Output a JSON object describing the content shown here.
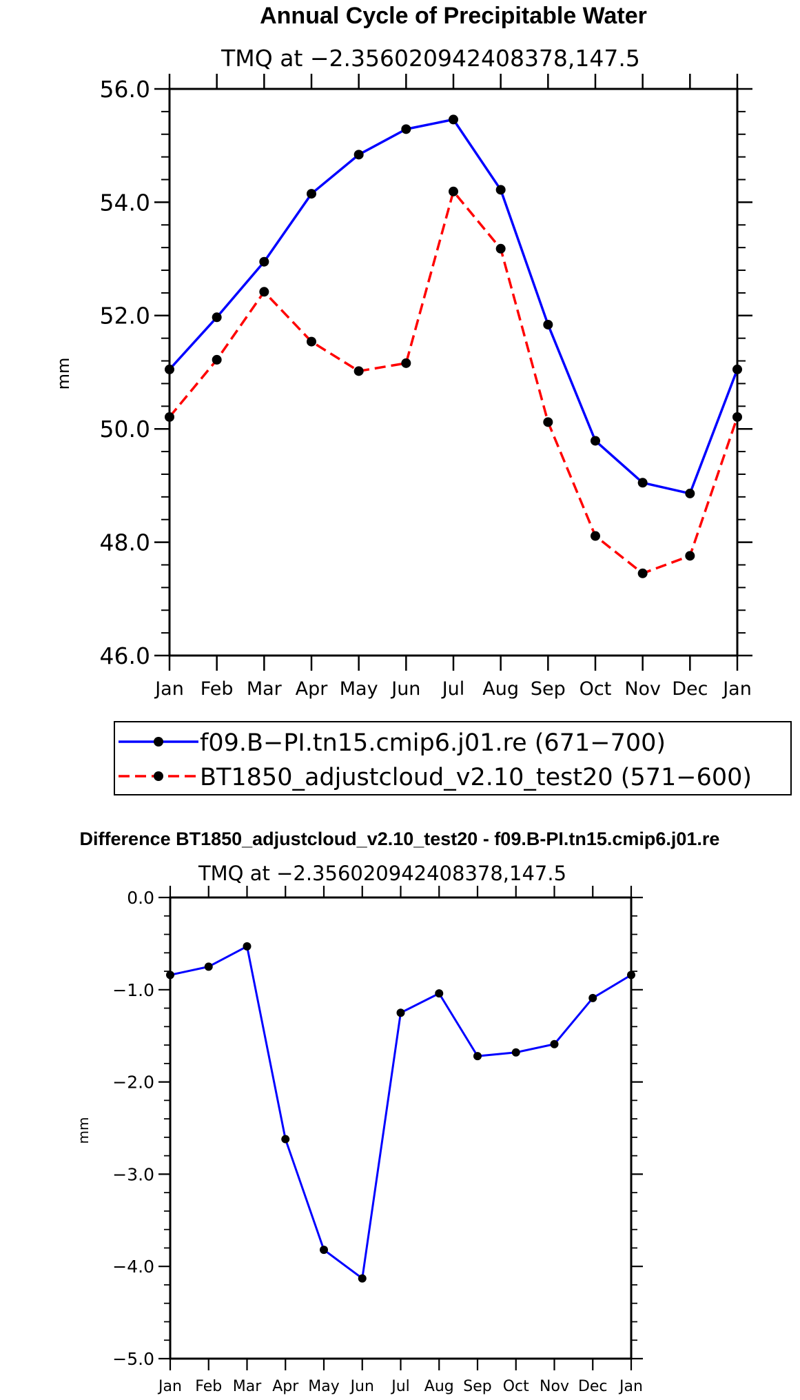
{
  "chart_data": [
    {
      "type": "line",
      "title": "Annual Cycle of Precipitable Water",
      "subtitle": "TMQ at −2.356020942408378,147.5",
      "xlabel": "",
      "ylabel": "mm",
      "categories": [
        "Jan",
        "Feb",
        "Mar",
        "Apr",
        "May",
        "Jun",
        "Jul",
        "Aug",
        "Sep",
        "Oct",
        "Nov",
        "Dec",
        "Jan"
      ],
      "ylim": [
        46.0,
        56.0
      ],
      "yticks": [
        46.0,
        48.0,
        50.0,
        52.0,
        54.0,
        56.0
      ],
      "ytick_labels": [
        "46.0",
        "48.0",
        "50.0",
        "52.0",
        "54.0",
        "56.0"
      ],
      "grid": false,
      "series": [
        {
          "name": "f09.B−PI.tn15.cmip6.j01.re (671−700)",
          "color": "#0000ff",
          "style": "solid",
          "values": [
            51.05,
            51.97,
            52.95,
            54.15,
            54.84,
            55.29,
            55.46,
            54.22,
            51.84,
            49.79,
            49.05,
            48.86,
            51.05
          ]
        },
        {
          "name": "BT1850_adjustcloud_v2.10_test20 (571−600)",
          "color": "#ff0000",
          "style": "dashed",
          "values": [
            50.21,
            51.22,
            52.42,
            51.54,
            51.02,
            51.16,
            54.19,
            53.18,
            50.12,
            48.11,
            47.45,
            47.76,
            50.21
          ]
        }
      ],
      "legend": "below"
    },
    {
      "type": "line",
      "title": "Difference BT1850_adjustcloud_v2.10_test20 - f09.B-PI.tn15.cmip6.j01.re",
      "subtitle": "TMQ at −2.356020942408378,147.5",
      "xlabel": "",
      "ylabel": "mm",
      "categories": [
        "Jan",
        "Feb",
        "Mar",
        "Apr",
        "May",
        "Jun",
        "Jul",
        "Aug",
        "Sep",
        "Oct",
        "Nov",
        "Dec",
        "Jan"
      ],
      "ylim": [
        -5.0,
        0.0
      ],
      "yticks": [
        -5.0,
        -4.0,
        -3.0,
        -2.0,
        -1.0,
        0.0
      ],
      "ytick_labels": [
        "−5.0",
        "−4.0",
        "−3.0",
        "−2.0",
        "−1.0",
        "0.0"
      ],
      "grid": false,
      "series": [
        {
          "name": "difference",
          "color": "#0000ff",
          "style": "solid",
          "values": [
            -0.84,
            -0.75,
            -0.53,
            -2.62,
            -3.82,
            -4.13,
            -1.25,
            -1.04,
            -1.72,
            -1.68,
            -1.59,
            -1.09,
            -0.84
          ]
        }
      ]
    }
  ]
}
